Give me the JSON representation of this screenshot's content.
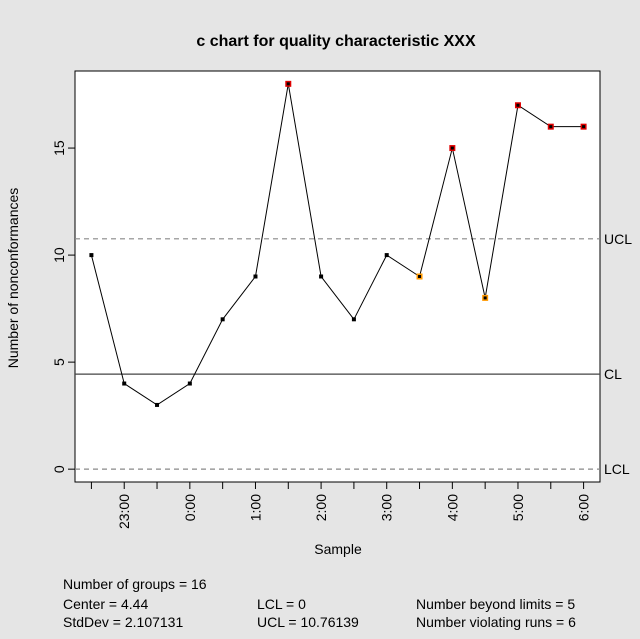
{
  "chart_data": {
    "type": "line",
    "title": "c chart for quality characteristic XXX",
    "xlabel": "Sample",
    "ylabel": "Number of nonconformances",
    "x_tick_labels": [
      "23:00",
      "0:00",
      "1:00",
      "2:00",
      "3:00",
      "4:00",
      "5:00",
      "6:00"
    ],
    "x_tick_samples": [
      2,
      4,
      6,
      8,
      10,
      12,
      14,
      16
    ],
    "y_ticks": [
      0,
      5,
      10,
      15
    ],
    "ylim": [
      -0.6,
      18.6
    ],
    "xlim": [
      0.5,
      16.5
    ],
    "samples": [
      1,
      2,
      3,
      4,
      5,
      6,
      7,
      8,
      9,
      10,
      11,
      12,
      13,
      14,
      15,
      16
    ],
    "values": [
      10,
      4,
      3,
      4,
      7,
      9,
      18,
      9,
      7,
      10,
      9,
      15,
      8,
      17,
      16,
      16
    ],
    "status": [
      "normal",
      "normal",
      "normal",
      "normal",
      "normal",
      "normal",
      "beyond",
      "normal",
      "normal",
      "normal",
      "run",
      "beyond",
      "run",
      "beyond",
      "beyond",
      "beyond"
    ],
    "control_lines": [
      {
        "label": "UCL",
        "value": 10.76139,
        "style": "dashed"
      },
      {
        "label": "CL",
        "value": 4.44,
        "style": "solid"
      },
      {
        "label": "LCL",
        "value": 0,
        "style": "dashed"
      }
    ],
    "colors": {
      "normal": "#000000",
      "beyond": "#e00000",
      "run": "#ff9900",
      "line": "#000000",
      "limits": "#888888",
      "background": "#e5e5e5",
      "panel": "#ffffff"
    },
    "grid": false
  },
  "stats": {
    "groups": "Number of groups = 16",
    "center": "Center = 4.44",
    "stddev": "StdDev = 2.107131",
    "lcl": "LCL = 0",
    "ucl": "UCL = 10.76139",
    "beyond": "Number beyond limits = 5",
    "runs": "Number violating runs = 6"
  }
}
